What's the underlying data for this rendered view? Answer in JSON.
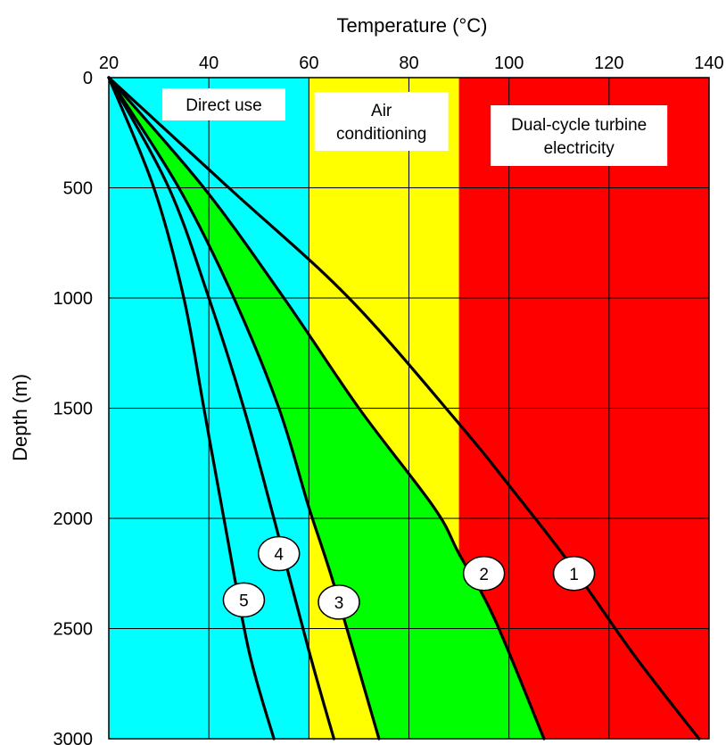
{
  "chart_data": {
    "type": "line",
    "title": "",
    "xlabel": "Temperature (°C)",
    "ylabel": "Depth (m)",
    "x_axis_position": "top",
    "y_axis_inverted": true,
    "xlim": [
      20,
      140
    ],
    "ylim": [
      0,
      3000
    ],
    "x_ticks": [
      20,
      40,
      60,
      80,
      100,
      120,
      140
    ],
    "y_ticks": [
      0,
      500,
      1000,
      1500,
      2000,
      2500,
      3000
    ],
    "grid": true,
    "zones": [
      {
        "label": "Direct use",
        "t_min": 20,
        "t_max": 60,
        "color": "#00ffff"
      },
      {
        "label": "Air conditioning",
        "t_min": 60,
        "t_max": 90,
        "color": "#ffff00"
      },
      {
        "label": "Dual-cycle turbine electricity",
        "t_min": 90,
        "t_max": 140,
        "color": "#ff0000"
      }
    ],
    "band_fill": {
      "between": [
        "2",
        "3"
      ],
      "color": "#00ff00"
    },
    "series": [
      {
        "name": "1",
        "points": [
          [
            20,
            0
          ],
          [
            44,
            500
          ],
          [
            68,
            1000
          ],
          [
            90,
            1570
          ],
          [
            100,
            1850
          ],
          [
            112,
            2200
          ],
          [
            125,
            2620
          ],
          [
            138,
            3000
          ]
        ]
      },
      {
        "name": "2",
        "points": [
          [
            20,
            0
          ],
          [
            39,
            500
          ],
          [
            55,
            1000
          ],
          [
            70,
            1500
          ],
          [
            85,
            1950
          ],
          [
            90,
            2160
          ],
          [
            97,
            2450
          ],
          [
            107,
            3000
          ]
        ]
      },
      {
        "name": "3",
        "points": [
          [
            20,
            0
          ],
          [
            34,
            500
          ],
          [
            45,
            1000
          ],
          [
            54,
            1500
          ],
          [
            60,
            1950
          ],
          [
            65,
            2300
          ],
          [
            74,
            3000
          ]
        ]
      },
      {
        "name": "4",
        "points": [
          [
            20,
            0
          ],
          [
            32,
            500
          ],
          [
            40,
            1000
          ],
          [
            47,
            1500
          ],
          [
            53,
            2000
          ],
          [
            60,
            2600
          ],
          [
            65,
            3000
          ]
        ]
      },
      {
        "name": "5",
        "points": [
          [
            20,
            0
          ],
          [
            29,
            500
          ],
          [
            35,
            1000
          ],
          [
            39,
            1500
          ],
          [
            43,
            2000
          ],
          [
            48,
            2600
          ],
          [
            53,
            3000
          ]
        ]
      }
    ],
    "curve_label_positions": [
      {
        "name": "1",
        "at": [
          113,
          2250
        ]
      },
      {
        "name": "2",
        "at": [
          95,
          2250
        ]
      },
      {
        "name": "3",
        "at": [
          66,
          2380
        ]
      },
      {
        "name": "4",
        "at": [
          54,
          2160
        ]
      },
      {
        "name": "5",
        "at": [
          47,
          2370
        ]
      }
    ]
  }
}
